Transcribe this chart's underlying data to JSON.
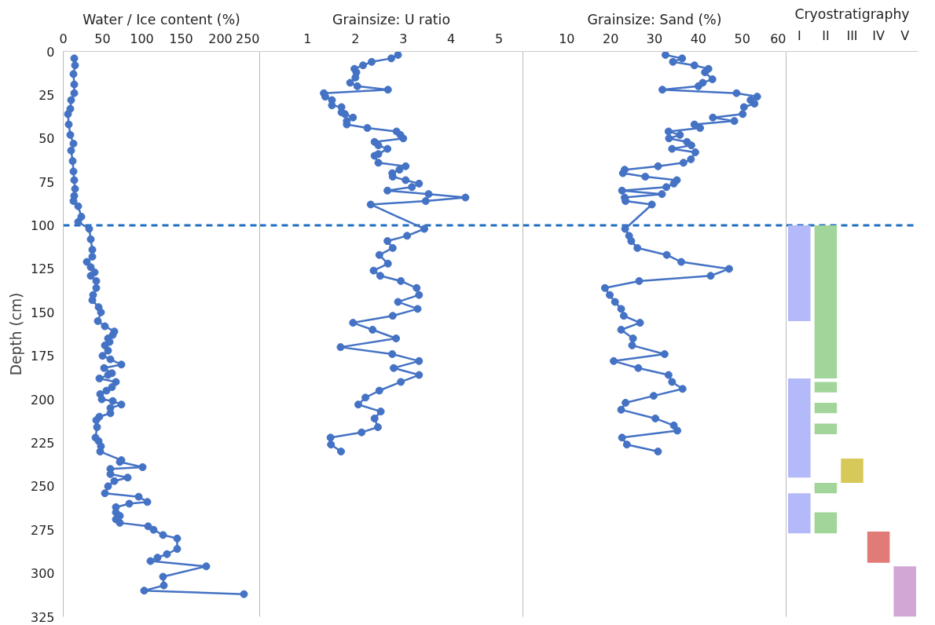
{
  "chart_data": [
    {
      "type": "line",
      "title": "Water / Ice content (%)",
      "ylabel": "Depth (cm)",
      "xlim": [
        0,
        250
      ],
      "xticks": [
        0,
        50,
        100,
        150,
        200,
        250
      ],
      "ylim": [
        325,
        0
      ],
      "yticks": [
        0,
        25,
        50,
        75,
        100,
        125,
        150,
        175,
        200,
        225,
        250,
        275,
        300,
        325
      ],
      "marker": "circle",
      "line_style": "solid",
      "grid": false,
      "ref_lines": [
        {
          "axis": "y",
          "value": 100,
          "label": null,
          "color": "#1f6fbf",
          "line_style": "dashed"
        }
      ],
      "series": [
        {
          "color": "#4472c4",
          "x": [
            14,
            15,
            13,
            14,
            14,
            10,
            9,
            6,
            7,
            9,
            13,
            10,
            12,
            13,
            14,
            15,
            14,
            13,
            19,
            23,
            19,
            33,
            35,
            37,
            37,
            30,
            35,
            40,
            35,
            42,
            42,
            38,
            37,
            45,
            48,
            44,
            53,
            65,
            63,
            57,
            59,
            53,
            57,
            50,
            60,
            74,
            52,
            62,
            57,
            46,
            67,
            62,
            55,
            47,
            49,
            63,
            74,
            60,
            60,
            46,
            42,
            43,
            41,
            45,
            48,
            47,
            74,
            72,
            101,
            60,
            60,
            82,
            65,
            57,
            53,
            96,
            107,
            84,
            67,
            67,
            72,
            67,
            72,
            108,
            115,
            127,
            145,
            145,
            132,
            120,
            111,
            182,
            127,
            128,
            103,
            230
          ],
          "values": [
            4,
            8,
            13,
            19,
            24,
            28,
            33,
            36,
            42,
            48,
            53,
            57,
            63,
            69,
            74,
            79,
            83,
            86,
            89,
            95,
            98,
            102,
            108,
            114,
            118,
            121,
            124,
            127,
            129,
            132,
            136,
            140,
            143,
            147,
            150,
            155,
            158,
            161,
            163,
            165,
            167,
            169,
            172,
            175,
            177,
            180,
            182,
            185,
            186,
            188,
            190,
            193,
            195,
            197,
            200,
            201,
            203,
            205,
            208,
            210,
            212,
            216,
            222,
            224,
            227,
            230,
            235,
            236,
            239,
            240,
            243,
            245,
            247,
            250,
            254,
            256,
            259,
            260,
            262,
            265,
            267,
            269,
            271,
            273,
            275,
            278,
            280,
            286,
            289,
            291,
            293,
            296,
            302,
            307,
            310,
            312
          ]
        }
      ]
    },
    {
      "type": "line",
      "title": "Grainsize: U ratio",
      "xlim": [
        0,
        5.5
      ],
      "xticks": [
        1,
        2,
        3,
        4,
        5
      ],
      "ylim": [
        325,
        0
      ],
      "tick_labels": "x",
      "marker": "circle",
      "line_style": "solid",
      "grid": false,
      "ref_lines": [
        {
          "axis": "y",
          "value": 100,
          "label": null,
          "color": "#1f6fbf",
          "line_style": "dashed"
        }
      ],
      "series": [
        {
          "color": "#4472c4",
          "x": [
            2.89,
            2.75,
            2.34,
            2.16,
            1.98,
            2.02,
            2.0,
            1.89,
            2.04,
            2.68,
            1.34,
            1.37,
            1.51,
            1.51,
            1.71,
            1.71,
            1.78,
            1.95,
            1.82,
            1.82,
            2.25,
            2.86,
            2.94,
            3.0,
            2.4,
            2.48,
            2.67,
            2.48,
            2.4,
            2.48,
            3.05,
            2.92,
            2.77,
            2.78,
            3.05,
            3.33,
            3.18,
            2.67,
            3.53,
            4.3,
            3.47,
            2.32,
            3.44,
            3.08,
            2.67,
            2.78,
            2.5,
            2.68,
            2.38,
            2.52,
            2.95,
            3.28,
            3.33,
            2.89,
            3.3,
            2.78,
            1.95,
            2.36,
            2.85,
            1.69,
            2.77,
            3.33,
            2.8,
            3.33,
            2.95,
            2.5,
            2.21,
            2.06,
            2.53,
            2.4,
            2.47,
            2.13,
            1.48,
            1.49,
            1.7
          ],
          "values": [
            2,
            4,
            6,
            8,
            10,
            12,
            15,
            18,
            20,
            22,
            24,
            26,
            28,
            31,
            32,
            35,
            36,
            38,
            40,
            42,
            44,
            46,
            48,
            50,
            52,
            54,
            56,
            59,
            60,
            64,
            66,
            68,
            70,
            72,
            74,
            76,
            78,
            80,
            82,
            84,
            86,
            88,
            102,
            106,
            109,
            113,
            117,
            122,
            126,
            129,
            132,
            136,
            140,
            144,
            148,
            152,
            156,
            160,
            165,
            170,
            174,
            178,
            182,
            186,
            190,
            195,
            199,
            203,
            207,
            211,
            216,
            219,
            222,
            226,
            230
          ]
        }
      ]
    },
    {
      "type": "line",
      "title": "Grainsize: Sand (%)",
      "xlim": [
        0,
        60
      ],
      "xticks": [
        10,
        20,
        30,
        40,
        50,
        60
      ],
      "ylim": [
        325,
        0
      ],
      "tick_labels": "x",
      "marker": "circle",
      "line_style": "solid",
      "grid": false,
      "ref_lines": [
        {
          "axis": "y",
          "value": 100,
          "label": null,
          "color": "#1f6fbf",
          "line_style": "dashed"
        }
      ],
      "series": [
        {
          "color": "#4472c4",
          "x": [
            32.5,
            36.3,
            34.2,
            39.1,
            42.3,
            41.5,
            43.2,
            41.0,
            40.0,
            31.8,
            48.7,
            53.4,
            51.9,
            52.8,
            50.4,
            50.1,
            43.3,
            48.2,
            39.1,
            40.4,
            33.2,
            35.8,
            33.3,
            37.4,
            38.4,
            34.0,
            39.3,
            38.3,
            36.6,
            30.8,
            23.2,
            22.8,
            27.9,
            35.1,
            34.4,
            32.7,
            22.6,
            31.7,
            23.2,
            23.4,
            29.4,
            23.3,
            24.2,
            24.7,
            26.1,
            32.8,
            36.1,
            47.0,
            42.8,
            26.5,
            18.7,
            19.8,
            21.0,
            22.4,
            23.0,
            26.7,
            22.4,
            25.1,
            24.9,
            32.3,
            20.7,
            26.3,
            33.2,
            34.0,
            36.4,
            29.8,
            23.4,
            22.4,
            30.2,
            34.4,
            35.2,
            22.6,
            23.7,
            30.8
          ],
          "values": [
            2,
            4,
            6,
            8,
            10,
            12,
            16,
            18,
            20,
            22,
            24,
            26,
            28,
            30,
            32,
            36,
            38,
            40,
            42,
            44,
            46,
            48,
            50,
            52,
            54,
            56,
            58,
            62,
            64,
            66,
            68,
            70,
            72,
            74,
            76,
            78,
            80,
            82,
            84,
            86,
            88,
            102,
            106,
            109,
            113,
            117,
            121,
            125,
            129,
            132,
            136,
            140,
            144,
            148,
            152,
            156,
            160,
            165,
            169,
            174,
            178,
            182,
            186,
            190,
            194,
            198,
            202,
            206,
            211,
            215,
            218,
            222,
            226,
            230
          ]
        }
      ]
    },
    {
      "type": "bar",
      "title": "Cryostratigraphy",
      "categories": [
        "I",
        "II",
        "III",
        "IV",
        "V"
      ],
      "ylim": [
        325,
        0
      ],
      "tick_labels": "x",
      "grid": false,
      "ref_lines": [
        {
          "axis": "y",
          "value": 100,
          "label": null,
          "color": "#1f6fbf",
          "line_style": "dashed"
        }
      ],
      "series": [
        {
          "colors": [
            "#b3b9f9",
            "#a1d599",
            "#d6c95a",
            "#e07b78",
            "#d3a7d5"
          ],
          "base": [
            100,
            100,
            234,
            276,
            296
          ],
          "values": [
            55,
            88,
            14,
            18,
            29
          ]
        },
        {
          "colors": [
            "#b3b9f9",
            "#a1d599",
            null,
            null,
            null
          ],
          "base": [
            188,
            190,
            null,
            null,
            null
          ],
          "values": [
            57,
            6,
            null,
            null,
            null
          ]
        },
        {
          "colors": [
            "#b3b9f9",
            "#a1d599",
            null,
            null,
            null
          ],
          "base": [
            254,
            202,
            null,
            null,
            null
          ],
          "values": [
            23,
            6,
            null,
            null,
            null
          ]
        },
        {
          "colors": [
            null,
            "#a1d599",
            null,
            null,
            null
          ],
          "base": [
            null,
            214,
            null,
            null,
            null
          ],
          "values": [
            null,
            6,
            null,
            null,
            null
          ]
        },
        {
          "colors": [
            null,
            "#a1d599",
            null,
            null,
            null
          ],
          "base": [
            null,
            248,
            null,
            null,
            null
          ],
          "values": [
            null,
            6,
            null,
            null,
            null
          ]
        },
        {
          "colors": [
            null,
            "#a1d599",
            null,
            null,
            null
          ],
          "base": [
            null,
            265,
            null,
            null,
            null
          ],
          "values": [
            null,
            12,
            null,
            null,
            null
          ]
        }
      ]
    }
  ]
}
